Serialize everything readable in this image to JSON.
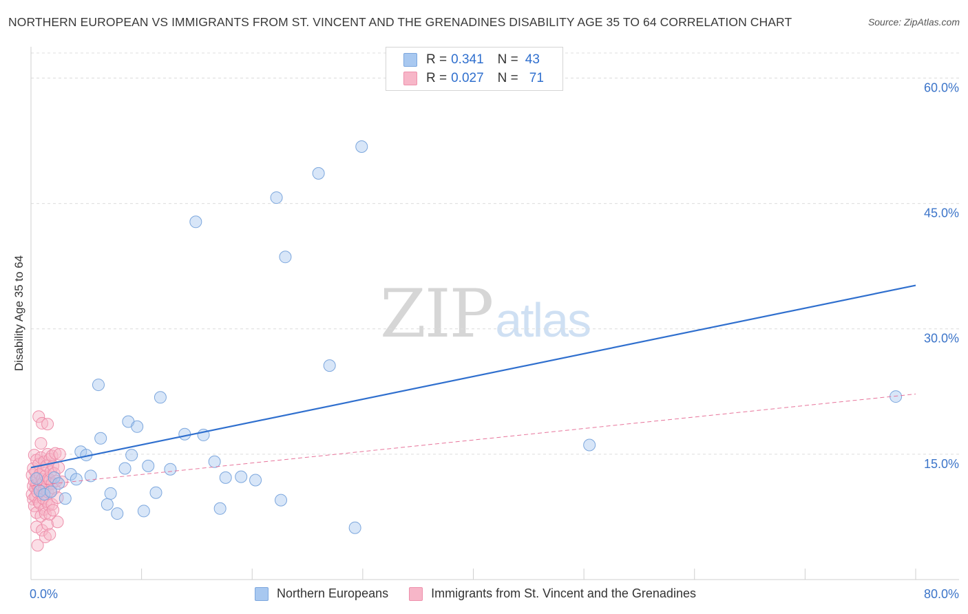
{
  "title": "NORTHERN EUROPEAN VS IMMIGRANTS FROM ST. VINCENT AND THE GRENADINES DISABILITY AGE 35 TO 64 CORRELATION CHART",
  "source": "Source: ZipAtlas.com",
  "watermark": {
    "zip": "ZIP",
    "atlas": "atlas"
  },
  "legend": {
    "rows": [
      {
        "r_label": "R =",
        "r_value": "0.341",
        "n_label": "N =",
        "n_value": "43",
        "color": "#a8c8f0"
      },
      {
        "r_label": "R =",
        "r_value": "0.027",
        "n_label": "N =",
        "n_value": "71",
        "color": "#f7b6c8"
      }
    ]
  },
  "bottom_legend": [
    {
      "label": "Northern Europeans",
      "color": "#a8c8f0"
    },
    {
      "label": "Immigrants from St. Vincent and the Grenadines",
      "color": "#f7b6c8"
    }
  ],
  "chart_data": {
    "type": "scatter",
    "title": "NORTHERN EUROPEAN VS IMMIGRANTS FROM ST. VINCENT AND THE GRENADINES DISABILITY AGE 35 TO 64 CORRELATION CHART",
    "xlabel": "",
    "ylabel": "Disability Age 35 to 64",
    "xlim": [
      0,
      80
    ],
    "ylim": [
      0,
      63
    ],
    "x_tick_labels": [
      "0.0%",
      "80.0%"
    ],
    "y_ticks": [
      15,
      30,
      45,
      60
    ],
    "y_tick_labels": [
      "15.0%",
      "30.0%",
      "45.0%",
      "60.0%"
    ],
    "grid": true,
    "series": [
      {
        "name": "Northern Europeans",
        "color": "#a8c8f0",
        "stroke": "#7ba6dd",
        "trend": {
          "x": [
            0,
            80
          ],
          "y": [
            13.4,
            35.2
          ],
          "color": "#2f6fce",
          "style": "solid"
        },
        "points": [
          [
            0.5,
            12.1
          ],
          [
            0.8,
            10.6
          ],
          [
            1.2,
            10.2
          ],
          [
            1.8,
            10.5
          ],
          [
            2.1,
            12.2
          ],
          [
            2.5,
            11.5
          ],
          [
            3.1,
            9.7
          ],
          [
            3.6,
            12.6
          ],
          [
            4.1,
            12.0
          ],
          [
            4.5,
            15.3
          ],
          [
            5.0,
            14.9
          ],
          [
            5.4,
            12.4
          ],
          [
            6.1,
            23.3
          ],
          [
            6.3,
            16.9
          ],
          [
            6.9,
            9.0
          ],
          [
            7.2,
            10.3
          ],
          [
            7.8,
            7.9
          ],
          [
            8.5,
            13.3
          ],
          [
            8.8,
            18.9
          ],
          [
            9.1,
            14.9
          ],
          [
            9.6,
            18.3
          ],
          [
            10.2,
            8.2
          ],
          [
            10.6,
            13.6
          ],
          [
            11.3,
            10.4
          ],
          [
            11.7,
            21.8
          ],
          [
            12.6,
            13.2
          ],
          [
            13.9,
            17.4
          ],
          [
            14.9,
            42.8
          ],
          [
            15.6,
            17.3
          ],
          [
            16.6,
            14.1
          ],
          [
            17.1,
            8.5
          ],
          [
            17.6,
            12.2
          ],
          [
            19.0,
            12.3
          ],
          [
            20.3,
            11.9
          ],
          [
            22.2,
            45.7
          ],
          [
            22.6,
            9.5
          ],
          [
            23.0,
            38.6
          ],
          [
            26.0,
            48.6
          ],
          [
            27.0,
            25.6
          ],
          [
            29.3,
            6.2
          ],
          [
            29.9,
            51.8
          ],
          [
            50.5,
            16.1
          ],
          [
            78.2,
            21.9
          ]
        ]
      },
      {
        "name": "Immigrants from St. Vincent and the Grenadines",
        "color": "#f7b6c8",
        "stroke": "#ee8fab",
        "trend": {
          "x": [
            0,
            80
          ],
          "y": [
            11.2,
            22.2
          ],
          "color": "#e7739a",
          "style": "dashed"
        },
        "points": [
          [
            0.1,
            10.2
          ],
          [
            0.1,
            12.5
          ],
          [
            0.2,
            11.2
          ],
          [
            0.2,
            9.6
          ],
          [
            0.2,
            13.3
          ],
          [
            0.3,
            14.9
          ],
          [
            0.3,
            8.8
          ],
          [
            0.3,
            11.8
          ],
          [
            0.4,
            10.9
          ],
          [
            0.4,
            12.9
          ],
          [
            0.4,
            9.9
          ],
          [
            0.5,
            14.3
          ],
          [
            0.5,
            11.4
          ],
          [
            0.5,
            8.0
          ],
          [
            0.5,
            6.3
          ],
          [
            0.6,
            10.4
          ],
          [
            0.6,
            12.2
          ],
          [
            0.6,
            4.1
          ],
          [
            0.7,
            9.3
          ],
          [
            0.7,
            13.8
          ],
          [
            0.7,
            11.0
          ],
          [
            0.7,
            19.5
          ],
          [
            0.8,
            10.7
          ],
          [
            0.8,
            12.6
          ],
          [
            0.8,
            9.1
          ],
          [
            0.9,
            14.6
          ],
          [
            0.9,
            11.3
          ],
          [
            0.9,
            7.6
          ],
          [
            0.9,
            16.3
          ],
          [
            1.0,
            10.1
          ],
          [
            1.0,
            12.0
          ],
          [
            1.0,
            5.9
          ],
          [
            1.0,
            18.7
          ],
          [
            1.1,
            13.1
          ],
          [
            1.1,
            9.7
          ],
          [
            1.1,
            11.6
          ],
          [
            1.2,
            8.4
          ],
          [
            1.2,
            14.1
          ],
          [
            1.2,
            10.8
          ],
          [
            1.3,
            12.4
          ],
          [
            1.3,
            5.1
          ],
          [
            1.3,
            7.9
          ],
          [
            1.4,
            11.1
          ],
          [
            1.4,
            13.6
          ],
          [
            1.4,
            9.4
          ],
          [
            1.5,
            10.5
          ],
          [
            1.5,
            6.6
          ],
          [
            1.5,
            15.0
          ],
          [
            1.5,
            18.6
          ],
          [
            1.6,
            12.1
          ],
          [
            1.6,
            8.9
          ],
          [
            1.7,
            14.4
          ],
          [
            1.7,
            11.9
          ],
          [
            1.7,
            5.4
          ],
          [
            1.7,
            7.8
          ],
          [
            1.8,
            10.6
          ],
          [
            1.8,
            12.9
          ],
          [
            1.9,
            9.0
          ],
          [
            1.9,
            14.8
          ],
          [
            1.9,
            11.5
          ],
          [
            2.0,
            13.6
          ],
          [
            2.0,
            8.3
          ],
          [
            2.1,
            10.9
          ],
          [
            2.1,
            12.7
          ],
          [
            2.2,
            15.1
          ],
          [
            2.3,
            11.8
          ],
          [
            2.4,
            6.9
          ],
          [
            2.4,
            9.8
          ],
          [
            2.5,
            13.4
          ],
          [
            2.6,
            15.0
          ],
          [
            2.8,
            11.7
          ]
        ]
      }
    ]
  }
}
